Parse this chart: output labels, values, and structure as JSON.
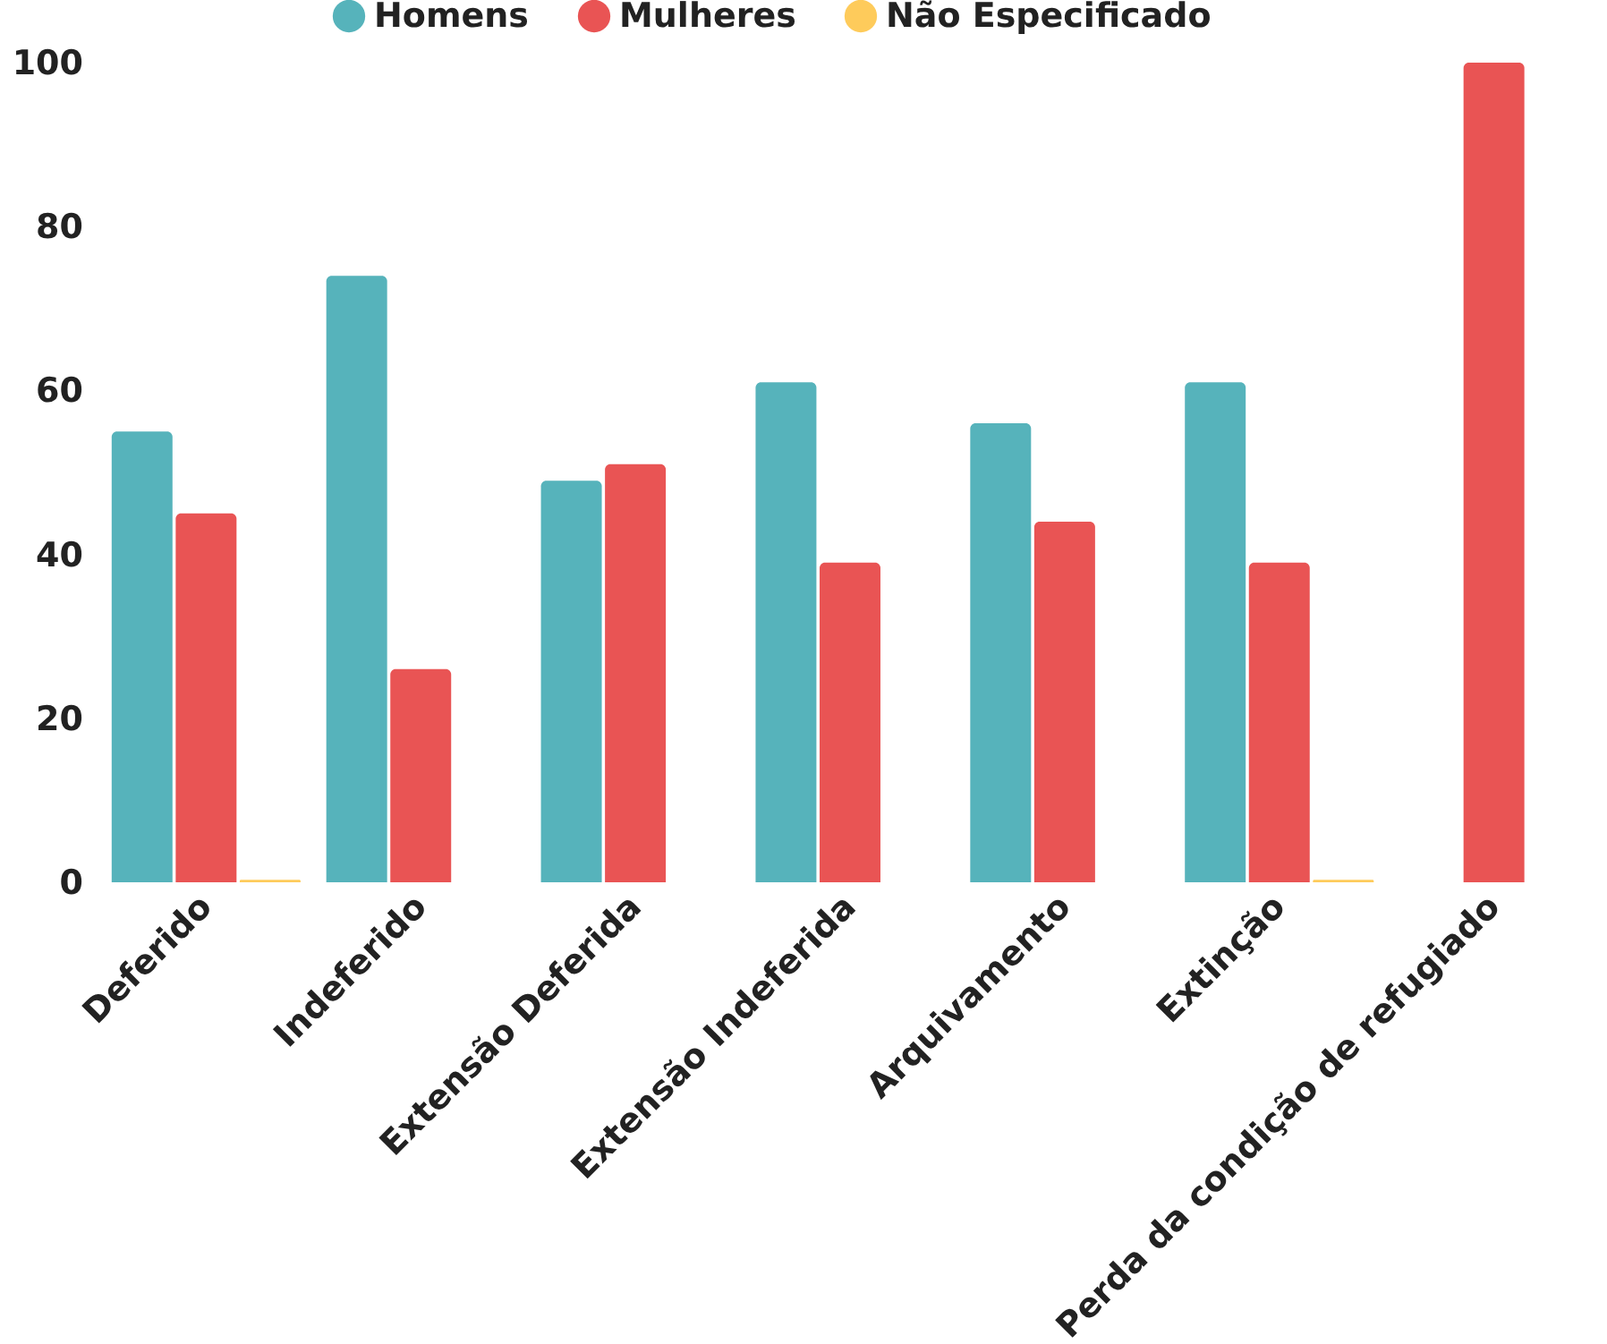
{
  "chart_data": {
    "type": "bar",
    "categories": [
      "Deferido",
      "Indeferido",
      "Extensão Deferida",
      "Extensão Indeferida",
      "Arquivamento",
      "Extinção",
      "Perda da condição de refugiado"
    ],
    "series": [
      {
        "name": "Homens",
        "color": "#56b3bb",
        "values": [
          55,
          74,
          49,
          61,
          56,
          61,
          0
        ]
      },
      {
        "name": "Mulheres",
        "color": "#e95454",
        "values": [
          45,
          26,
          51,
          39,
          44,
          39,
          100
        ]
      },
      {
        "name": "Não Especificado",
        "color": "#fecb5b",
        "values": [
          0.3,
          0,
          0,
          0,
          0,
          0.3,
          0
        ]
      }
    ],
    "ylim": [
      0,
      100
    ],
    "yticks": [
      0,
      20,
      40,
      60,
      80,
      100
    ],
    "grid": false,
    "legend": "top"
  }
}
